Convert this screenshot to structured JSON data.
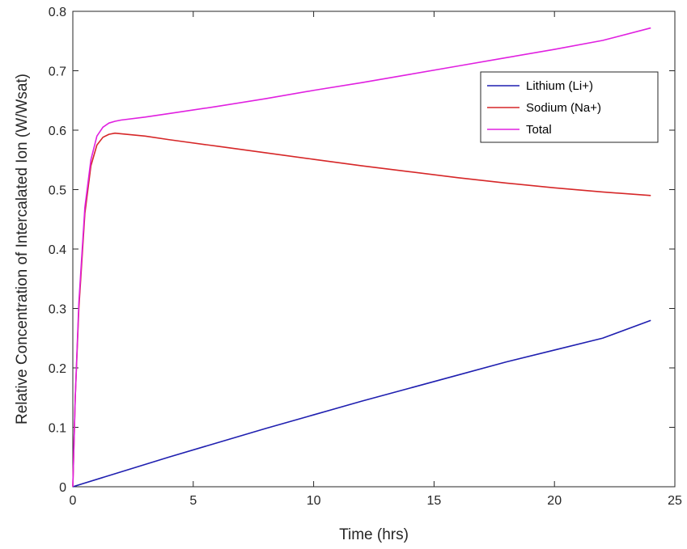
{
  "chart_data": {
    "type": "line",
    "title": "",
    "xlabel": "Time (hrs)",
    "ylabel": "Relative Concentration of Intercalated Ion (W/Wsat)",
    "xlim": [
      0,
      25
    ],
    "ylim": [
      0,
      0.8
    ],
    "xticks": [
      "0",
      "5",
      "10",
      "15",
      "20",
      "25"
    ],
    "yticks": [
      "0",
      "0.1",
      "0.2",
      "0.3",
      "0.4",
      "0.5",
      "0.6",
      "0.7",
      "0.8"
    ],
    "grid": false,
    "legend_position": "upper-right",
    "series": [
      {
        "name": "Lithium (Li+)",
        "color": "#1f1fb0",
        "x": [
          0,
          2,
          4,
          6,
          8,
          10,
          12,
          14,
          16,
          18,
          20,
          22,
          24
        ],
        "y": [
          0,
          0.025,
          0.05,
          0.074,
          0.098,
          0.121,
          0.144,
          0.166,
          0.188,
          0.21,
          0.23,
          0.25,
          0.28
        ]
      },
      {
        "name": "Sodium (Na+)",
        "color": "#d62728",
        "x": [
          0,
          0.1,
          0.25,
          0.5,
          0.75,
          1.0,
          1.25,
          1.5,
          1.75,
          2,
          3,
          4,
          6,
          8,
          10,
          12,
          14,
          16,
          18,
          20,
          22,
          24
        ],
        "y": [
          0,
          0.15,
          0.3,
          0.46,
          0.54,
          0.575,
          0.588,
          0.593,
          0.595,
          0.594,
          0.59,
          0.584,
          0.573,
          0.562,
          0.551,
          0.54,
          0.53,
          0.52,
          0.511,
          0.503,
          0.496,
          0.49
        ]
      },
      {
        "name": "Total",
        "color": "#e020e0",
        "x": [
          0,
          0.1,
          0.25,
          0.5,
          0.75,
          1.0,
          1.25,
          1.5,
          1.75,
          2,
          3,
          4,
          6,
          8,
          10,
          12,
          14,
          16,
          18,
          20,
          22,
          24
        ],
        "y": [
          0,
          0.15,
          0.31,
          0.47,
          0.55,
          0.59,
          0.605,
          0.612,
          0.615,
          0.617,
          0.622,
          0.628,
          0.64,
          0.653,
          0.667,
          0.68,
          0.694,
          0.708,
          0.722,
          0.736,
          0.751,
          0.772
        ]
      }
    ]
  }
}
